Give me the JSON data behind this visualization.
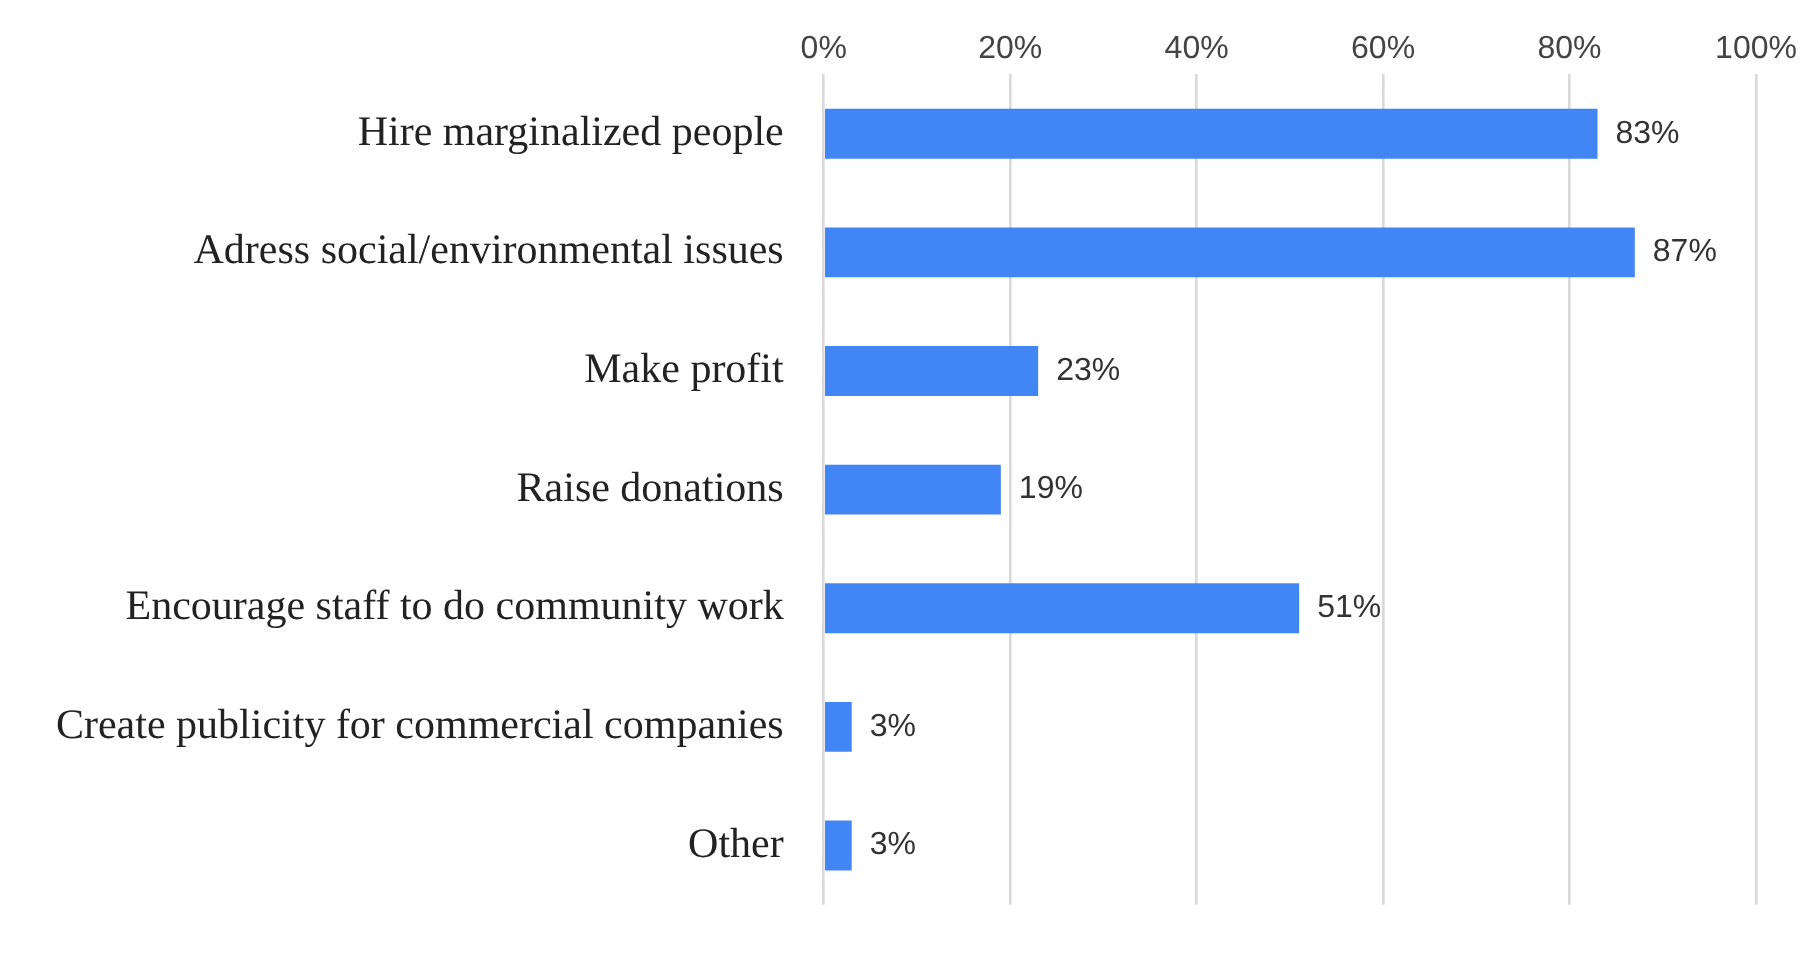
{
  "chart_data": {
    "type": "bar",
    "orientation": "horizontal",
    "categories": [
      "Hire marginalized people",
      "Adress social/environmental issues",
      "Make profit",
      "Raise donations",
      "Encourage staff to do community work",
      "Create publicity for commercial companies",
      "Other"
    ],
    "values": [
      83,
      87,
      23,
      19,
      51,
      3,
      3
    ],
    "value_labels": [
      "83%",
      "87%",
      "23%",
      "19%",
      "51%",
      "3%",
      "3%"
    ],
    "color": "#4285f4",
    "xlim": [
      0,
      100
    ],
    "xticks": [
      {
        "value": 0,
        "label": "0%"
      },
      {
        "value": 20,
        "label": "20%"
      },
      {
        "value": 40,
        "label": "40%"
      },
      {
        "value": 60,
        "label": "60%"
      },
      {
        "value": 80,
        "label": "80%"
      },
      {
        "value": 100,
        "label": "100%"
      }
    ],
    "grid": "x",
    "legend": false
  }
}
